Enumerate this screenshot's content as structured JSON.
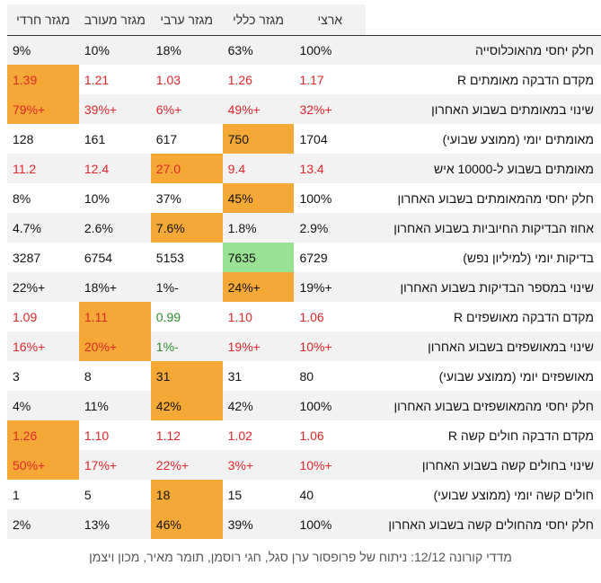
{
  "headers": [
    "ארצי",
    "מגזר כללי",
    "מגזר ערבי",
    "מגזר מעורב",
    "מגזר חרדי"
  ],
  "rows": [
    {
      "label": "חלק יחסי מהאוכלוסייה",
      "values": [
        "100%",
        "63%",
        "18%",
        "10%",
        "9%"
      ],
      "colors": [
        "black",
        "black",
        "black",
        "black",
        "black"
      ],
      "highlight": [
        false,
        false,
        false,
        false,
        false
      ]
    },
    {
      "label": "מקדם הדבקה מאומתים R",
      "values": [
        "1.17",
        "1.26",
        "1.03",
        "1.21",
        "1.39"
      ],
      "colors": [
        "red",
        "red",
        "red",
        "red",
        "red"
      ],
      "highlight": [
        false,
        false,
        false,
        false,
        true
      ]
    },
    {
      "label": "שינוי במאומתים בשבוע האחרון",
      "values": [
        "+32%",
        "+49%",
        "+6%",
        "+39%",
        "+79%"
      ],
      "colors": [
        "red",
        "red",
        "red",
        "red",
        "red"
      ],
      "highlight": [
        false,
        false,
        false,
        false,
        true
      ]
    },
    {
      "label": "מאומתים יומי (ממוצע שבועי)",
      "values": [
        "1704",
        "750",
        "617",
        "161",
        "128"
      ],
      "colors": [
        "black",
        "black",
        "black",
        "black",
        "black"
      ],
      "highlight": [
        false,
        true,
        false,
        false,
        false
      ]
    },
    {
      "label": "מאומתים בשבוע ל-10000 איש",
      "values": [
        "13.4",
        "9.4",
        "27.0",
        "12.4",
        "11.2"
      ],
      "colors": [
        "red",
        "red",
        "red",
        "red",
        "red"
      ],
      "highlight": [
        false,
        false,
        true,
        false,
        false
      ]
    },
    {
      "label": "חלק יחסי מהמאומתים בשבוע האחרון",
      "values": [
        "100%",
        "45%",
        "37%",
        "10%",
        "8%"
      ],
      "colors": [
        "black",
        "black",
        "black",
        "black",
        "black"
      ],
      "highlight": [
        false,
        true,
        false,
        false,
        false
      ]
    },
    {
      "label": "אחוז הבדיקות החיוביות בשבוע האחרון",
      "values": [
        "2.9%",
        "1.8%",
        "7.6%",
        "2.6%",
        "4.7%"
      ],
      "colors": [
        "black",
        "black",
        "black",
        "black",
        "black"
      ],
      "highlight": [
        false,
        false,
        true,
        false,
        false
      ]
    },
    {
      "label": "בדיקות יומי (למיליון נפש)",
      "values": [
        "6729",
        "7635",
        "5153",
        "6754",
        "3287"
      ],
      "colors": [
        "black",
        "black",
        "black",
        "black",
        "black"
      ],
      "highlight": [
        false,
        "green",
        false,
        false,
        false
      ]
    },
    {
      "label": "שינוי במספר הבדיקות בשבוע האחרון",
      "values": [
        "+19%",
        "+24%",
        "-1%",
        "+18%",
        "+22%"
      ],
      "colors": [
        "black",
        "black",
        "black",
        "black",
        "black"
      ],
      "highlight": [
        false,
        true,
        false,
        false,
        false
      ]
    },
    {
      "label": "מקדם הדבקה מאושפזים R",
      "values": [
        "1.06",
        "1.10",
        "0.99",
        "1.11",
        "1.09"
      ],
      "colors": [
        "red",
        "red",
        "green",
        "red",
        "red"
      ],
      "highlight": [
        false,
        false,
        false,
        true,
        false
      ]
    },
    {
      "label": "שינוי במאושפזים בשבוע האחרון",
      "values": [
        "+10%",
        "+19%",
        "-1%",
        "+20%",
        "+16%"
      ],
      "colors": [
        "red",
        "red",
        "green",
        "red",
        "red"
      ],
      "highlight": [
        false,
        false,
        false,
        true,
        false
      ]
    },
    {
      "label": "מאושפזים יומי (ממוצע שבועי)",
      "values": [
        "80",
        "31",
        "31",
        "8",
        "3"
      ],
      "colors": [
        "black",
        "black",
        "black",
        "black",
        "black"
      ],
      "highlight": [
        false,
        false,
        true,
        false,
        false
      ]
    },
    {
      "label": "חלק יחסי מהמאושפזים בשבוע האחרון",
      "values": [
        "100%",
        "42%",
        "42%",
        "11%",
        "4%"
      ],
      "colors": [
        "black",
        "black",
        "black",
        "black",
        "black"
      ],
      "highlight": [
        false,
        false,
        true,
        false,
        false
      ]
    },
    {
      "label": "מקדם הדבקה חולים קשה R",
      "values": [
        "1.06",
        "1.02",
        "1.12",
        "1.10",
        "1.26"
      ],
      "colors": [
        "red",
        "red",
        "red",
        "red",
        "red"
      ],
      "highlight": [
        false,
        false,
        false,
        false,
        true
      ]
    },
    {
      "label": "שינוי בחולים קשה בשבוע האחרון",
      "values": [
        "+10%",
        "+3%",
        "+22%",
        "+17%",
        "+50%"
      ],
      "colors": [
        "red",
        "red",
        "red",
        "red",
        "red"
      ],
      "highlight": [
        false,
        false,
        false,
        false,
        true
      ]
    },
    {
      "label": "חולים קשה יומי (ממוצע שבועי)",
      "values": [
        "40",
        "15",
        "18",
        "5",
        "1"
      ],
      "colors": [
        "black",
        "black",
        "black",
        "black",
        "black"
      ],
      "highlight": [
        false,
        false,
        true,
        false,
        false
      ]
    },
    {
      "label": "חלק יחסי מהחולים קשה בשבוע האחרון",
      "values": [
        "100%",
        "39%",
        "46%",
        "13%",
        "2%"
      ],
      "colors": [
        "black",
        "black",
        "black",
        "black",
        "black"
      ],
      "highlight": [
        false,
        false,
        true,
        false,
        false
      ]
    }
  ],
  "caption": "מדדי קורונה 12/12: ניתוח של פרופסור ערן סגל, חגי רוסמן, תומר מאיר, מכון ויצמן",
  "colors": {
    "highlight": "#f4a937",
    "highlight_green": "#99e193",
    "red_text": "#e0262a",
    "green_text": "#2a8f2a",
    "stripe": "#f2f2f2"
  }
}
